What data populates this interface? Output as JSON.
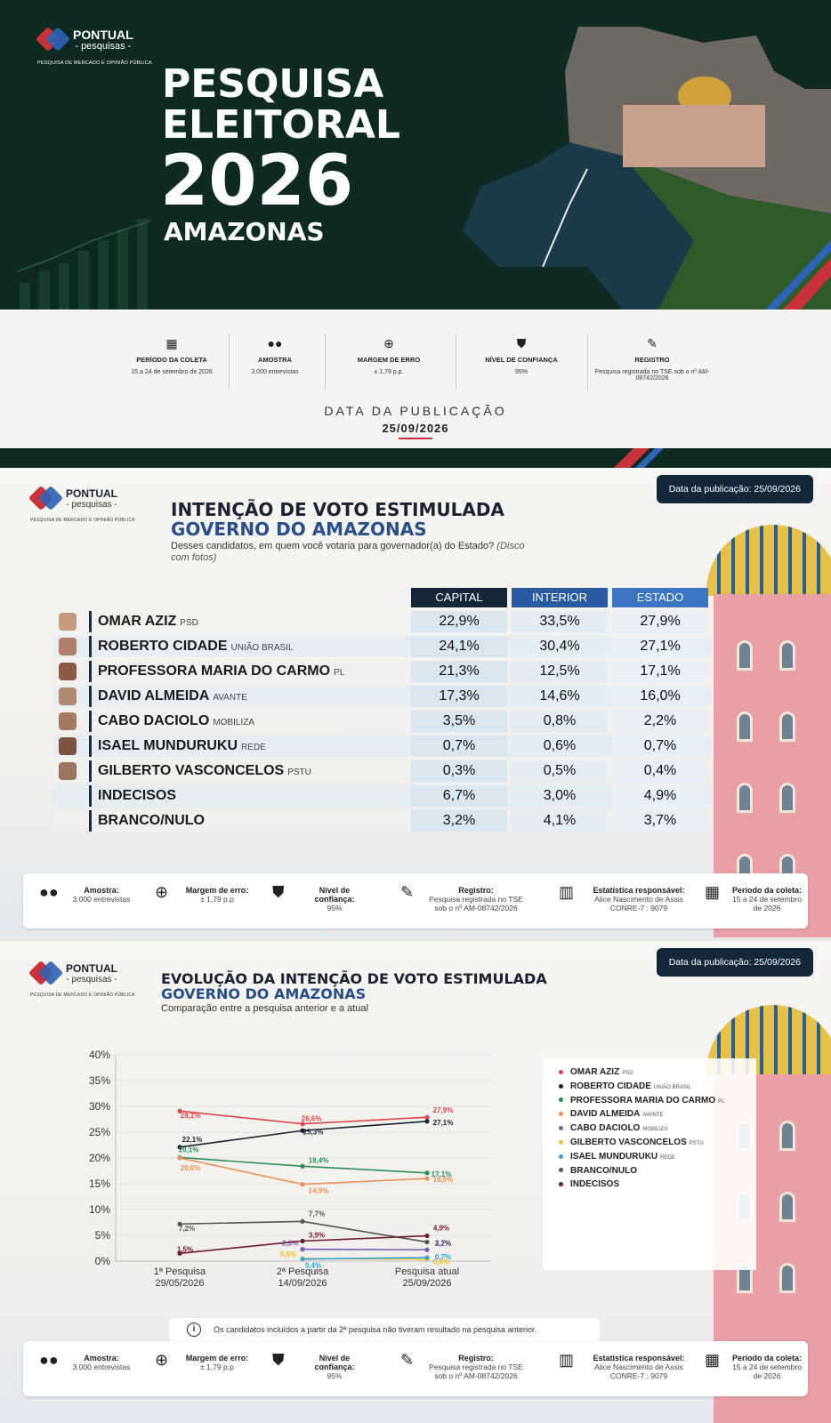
{
  "brand": {
    "name": "PONTUAL",
    "sub": "- pesquisas -",
    "tagline": "PESQUISA DE MERCADO E OPINIÃO PÚBLICA"
  },
  "banner": {
    "line1": "PESQUISA",
    "line2": "ELEITORAL",
    "year": "2026",
    "state": "AMAZONAS"
  },
  "info": {
    "items": [
      {
        "label": "PERÍODO DA COLETA",
        "value": "15 a 24 de setembro de 2026",
        "icon": "calendar-icon"
      },
      {
        "label": "AMOSTRA",
        "value": "3.000 entrevistas",
        "icon": "people-icon"
      },
      {
        "label": "MARGEM DE ERRO",
        "value": "± 1,79 p.p.",
        "icon": "target-icon"
      },
      {
        "label": "NÍVEL DE CONFIANÇA",
        "value": "95%",
        "icon": "shield-icon"
      },
      {
        "label": "REGISTRO",
        "value": "Pesquisa registrada no TSE sob o nº AM-08742/2026",
        "icon": "document-icon"
      }
    ],
    "pub_label": "DATA DA PUBLICAÇÃO",
    "pub_date": "25/09/2026"
  },
  "panel1": {
    "date": "Data da publicação: 25/09/2026",
    "title1": "INTENÇÃO DE VOTO ESTIMULADA",
    "title2": "GOVERNO DO AMAZONAS",
    "question": "Desses candidatos, em quem você votaria para governador(a) do Estado?",
    "question_note": "(Disco com fotos)",
    "cols": [
      "CAPITAL",
      "INTERIOR",
      "ESTADO"
    ],
    "rows": [
      {
        "name": "OMAR AZIZ",
        "party": "PSD",
        "v": [
          "22,9%",
          "33,5%",
          "27,9%"
        ]
      },
      {
        "name": "ROBERTO CIDADE",
        "party": "UNIÃO BRASIL",
        "v": [
          "24,1%",
          "30,4%",
          "27,1%"
        ]
      },
      {
        "name": "PROFESSORA MARIA DO CARMO",
        "party": "PL",
        "v": [
          "21,3%",
          "12,5%",
          "17,1%"
        ]
      },
      {
        "name": "DAVID ALMEIDA",
        "party": "AVANTE",
        "v": [
          "17,3%",
          "14,6%",
          "16,0%"
        ]
      },
      {
        "name": "CABO DACIOLO",
        "party": "MOBILIZA",
        "v": [
          "3,5%",
          "0,8%",
          "2,2%"
        ]
      },
      {
        "name": "ISAEL MUNDURUKU",
        "party": "REDE",
        "v": [
          "0,7%",
          "0,6%",
          "0,7%"
        ]
      },
      {
        "name": "GILBERTO VASCONCELOS",
        "party": "PSTU",
        "v": [
          "0,3%",
          "0,5%",
          "0,4%"
        ]
      },
      {
        "name": "INDECISOS",
        "party": "",
        "v": [
          "6,7%",
          "3,0%",
          "4,9%"
        ]
      },
      {
        "name": "BRANCO/NULO",
        "party": "",
        "v": [
          "3,2%",
          "4,1%",
          "3,7%"
        ]
      }
    ]
  },
  "footer": {
    "items": [
      {
        "label": "Amostra:",
        "value": "3.000 entrevistas"
      },
      {
        "label": "Margem de erro:",
        "value": "± 1,79 p.p"
      },
      {
        "label": "Nível de confiança:",
        "value": "95%"
      },
      {
        "label": "Registro:",
        "value": "Pesquisa registrada no TSE sob o nº AM-08742/2026"
      },
      {
        "label": "Estatística responsável:",
        "value": "Alice Nascimento de Assis CONRE-7 : 9079"
      },
      {
        "label": "Período da coleta:",
        "value": "15 a 24 de setembro de 2026"
      }
    ]
  },
  "panel2": {
    "date": "Data da publicação: 25/09/2026",
    "title1": "EVOLUÇÃO DA INTENÇÃO DE VOTO ESTIMULADA",
    "title2": "GOVERNO DO AMAZONAS",
    "subtitle": "Comparação entre a pesquisa anterior e a atual",
    "note": "Os candidatos incluídos a partir da 2ª pesquisa não tiveram resultado na pesquisa anterior."
  },
  "chart_data": {
    "type": "line",
    "x": [
      "1ª Pesquisa",
      "2ª Pesquisa",
      "Pesquisa atual"
    ],
    "x_dates": [
      "29/05/2026",
      "14/09/2026",
      "25/09/2026"
    ],
    "ylim": [
      0,
      40
    ],
    "yticks": [
      "0%",
      "5%",
      "10%",
      "15%",
      "20%",
      "25%",
      "30%",
      "35%",
      "40%"
    ],
    "grid": true,
    "legend": "right",
    "series": [
      {
        "name": "OMAR AZIZ",
        "party": "PSD",
        "color": "#d9484f",
        "values": [
          29.1,
          26.6,
          27.9
        ],
        "labels": [
          "29,1%",
          "26,6%",
          "27,9%"
        ]
      },
      {
        "name": "ROBERTO CIDADE",
        "party": "UNIÃO BRASIL",
        "color": "#1b2233",
        "values": [
          22.1,
          25.3,
          27.1
        ],
        "labels": [
          "22,1%",
          "25,3%",
          "27,1%"
        ]
      },
      {
        "name": "PROFESSORA MARIA DO CARMO",
        "party": "PL",
        "color": "#2e8b5a",
        "values": [
          20.1,
          18.4,
          17.1
        ],
        "labels": [
          "20,1%",
          "18,4%",
          "17,1%"
        ]
      },
      {
        "name": "DAVID ALMEIDA",
        "party": "AVANTE",
        "color": "#e8935a",
        "values": [
          20.0,
          14.9,
          16.0
        ],
        "labels": [
          "20,0%",
          "14,9%",
          "16,0%"
        ]
      },
      {
        "name": "CABO DACIOLO",
        "party": "MOBILIZA",
        "color": "#7b5ab5",
        "values": [
          null,
          2.3,
          2.2
        ],
        "labels": [
          "",
          "2,3%",
          "2,2%"
        ]
      },
      {
        "name": "GILBERTO VASCONCELOS",
        "party": "PSTU",
        "color": "#e8c040",
        "values": [
          null,
          0.5,
          0.4
        ],
        "labels": [
          "",
          "0,5%",
          "0,4%"
        ]
      },
      {
        "name": "ISAEL MUNDURUKU",
        "party": "REDE",
        "color": "#3aa0c8",
        "values": [
          null,
          0.4,
          0.7
        ],
        "labels": [
          "",
          "0,4%",
          "0,7%"
        ]
      },
      {
        "name": "BRANCO/NULO",
        "party": "",
        "color": "#555555",
        "values": [
          7.2,
          7.7,
          3.7
        ],
        "labels": [
          "7,2%",
          "7,7%",
          "3,7%"
        ]
      },
      {
        "name": "INDECISOS",
        "party": "",
        "color": "#6b1f2a",
        "values": [
          1.5,
          3.9,
          4.9
        ],
        "labels": [
          "1,5%",
          "3,9%",
          "4,9%"
        ]
      }
    ]
  }
}
